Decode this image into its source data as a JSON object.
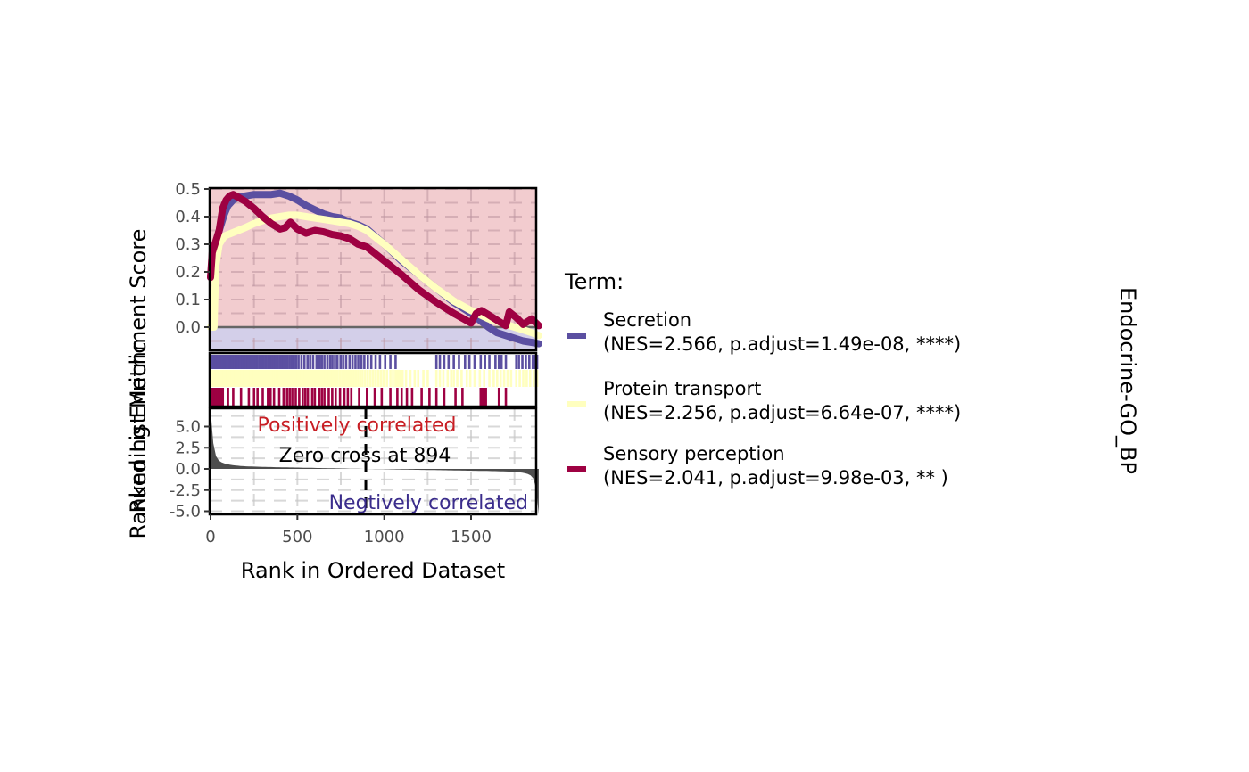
{
  "chart_data": {
    "type": "line",
    "title": "",
    "facet_label": "Endocrine-GO_BP",
    "xlabel": "Rank in Ordered Dataset",
    "xlim": [
      0,
      1890
    ],
    "x_ticks": [
      0,
      500,
      1000,
      1500
    ],
    "x_tick_labels": [
      "0",
      "500",
      "1000",
      "1500"
    ],
    "panels": {
      "running_score": {
        "ylabel": "Running Enrichment Score",
        "ylim": [
          -0.06,
          0.51
        ],
        "y_ticks": [
          0.0,
          0.1,
          0.2,
          0.3,
          0.4,
          0.5
        ],
        "y_tick_labels": [
          "0.0",
          "0.1",
          "0.2",
          "0.3",
          "0.4",
          "0.5"
        ],
        "positive_bg": "#f2cccf",
        "negative_bg": "#d3cfe9",
        "zero_line_color": "#666666"
      },
      "ranked_metric": {
        "ylabel": "Ranked List Metric",
        "ylim": [
          -5.5,
          7.2
        ],
        "y_ticks": [
          5.0,
          2.5,
          0.0,
          -2.5,
          -5.0
        ],
        "y_tick_labels": [
          "5.0",
          "2.5",
          "0.0",
          "-2.5",
          "-5.0"
        ],
        "fill_color": "#4d4d4d",
        "annotations": {
          "positive": "Positively correlated",
          "positive_color": "#c81e24",
          "negative": "Negtively correlated",
          "negative_color": "#3b2d8c",
          "zero_cross": "Zero cross at 894",
          "zero_cross_x": 894
        }
      }
    },
    "legend": {
      "title": "Term:",
      "position": "right"
    },
    "series": [
      {
        "name": "Secretion",
        "stats": "(NES=2.566, p.adjust=1.49e-08, ****)",
        "color": "#5b4fa1",
        "x": [
          0,
          20,
          40,
          60,
          80,
          100,
          130,
          160,
          200,
          250,
          300,
          350,
          400,
          450,
          500,
          550,
          600,
          650,
          700,
          750,
          800,
          850,
          900,
          1000,
          1100,
          1200,
          1300,
          1400,
          1500,
          1600,
          1650,
          1700,
          1750,
          1800,
          1850,
          1890
        ],
        "values": [
          0.18,
          0.28,
          0.33,
          0.37,
          0.41,
          0.44,
          0.46,
          0.47,
          0.475,
          0.48,
          0.48,
          0.48,
          0.485,
          0.475,
          0.46,
          0.44,
          0.425,
          0.41,
          0.4,
          0.395,
          0.38,
          0.37,
          0.355,
          0.3,
          0.24,
          0.19,
          0.14,
          0.09,
          0.05,
          0.0,
          -0.02,
          -0.03,
          -0.04,
          -0.05,
          -0.055,
          -0.06
        ]
      },
      {
        "name": "Protein transport",
        "stats": "(NES=2.256, p.adjust=6.64e-07, ****)",
        "color": "#ffffbf",
        "x": [
          0,
          20,
          30,
          50,
          80,
          120,
          160,
          200,
          250,
          300,
          350,
          400,
          450,
          500,
          550,
          600,
          650,
          700,
          750,
          800,
          850,
          900,
          1000,
          1100,
          1200,
          1300,
          1400,
          1500,
          1600,
          1700,
          1750,
          1800,
          1850,
          1890
        ],
        "values": [
          0.0,
          0.0,
          0.22,
          0.3,
          0.33,
          0.34,
          0.35,
          0.36,
          0.375,
          0.385,
          0.395,
          0.4,
          0.405,
          0.405,
          0.4,
          0.395,
          0.39,
          0.385,
          0.38,
          0.375,
          0.365,
          0.35,
          0.3,
          0.245,
          0.19,
          0.14,
          0.095,
          0.06,
          0.03,
          0.01,
          0.0,
          -0.01,
          -0.02,
          -0.03
        ]
      },
      {
        "name": "Sensory perception",
        "stats": "(NES=2.041, p.adjust=9.98e-03, **  )",
        "color": "#9e0142",
        "x": [
          0,
          10,
          30,
          50,
          70,
          90,
          110,
          130,
          160,
          200,
          250,
          300,
          350,
          400,
          430,
          460,
          500,
          550,
          600,
          650,
          700,
          750,
          800,
          850,
          900,
          1000,
          1100,
          1200,
          1300,
          1400,
          1500,
          1530,
          1560,
          1600,
          1650,
          1700,
          1720,
          1760,
          1800,
          1850,
          1890
        ],
        "values": [
          0.18,
          0.27,
          0.31,
          0.35,
          0.43,
          0.46,
          0.475,
          0.48,
          0.47,
          0.455,
          0.43,
          0.4,
          0.375,
          0.355,
          0.36,
          0.38,
          0.355,
          0.34,
          0.35,
          0.345,
          0.335,
          0.33,
          0.32,
          0.3,
          0.29,
          0.24,
          0.19,
          0.135,
          0.09,
          0.05,
          0.015,
          0.05,
          0.06,
          0.045,
          0.025,
          0.005,
          0.055,
          0.035,
          0.01,
          0.03,
          0.005
        ]
      }
    ],
    "hits": {
      "Secretion": [
        2,
        5,
        9,
        14,
        18,
        22,
        27,
        31,
        36,
        40,
        45,
        48,
        53,
        57,
        62,
        66,
        70,
        75,
        80,
        84,
        88,
        93,
        97,
        102,
        108,
        113,
        118,
        122,
        128,
        133,
        139,
        145,
        151,
        156,
        162,
        168,
        174,
        181,
        187,
        193,
        199,
        206,
        213,
        220,
        228,
        236,
        245,
        253,
        262,
        270,
        283,
        294,
        306,
        318,
        330,
        341,
        352,
        362,
        373,
        388,
        400,
        411,
        418,
        430,
        442,
        455,
        468,
        480,
        492,
        506,
        523,
        540,
        558,
        573,
        590,
        610,
        627,
        640,
        655,
        672,
        688,
        701,
        716,
        730,
        748,
        763,
        780,
        800,
        817,
        834,
        850,
        868,
        885,
        905,
        925,
        950,
        975,
        1005,
        1035,
        1065,
        1300,
        1320,
        1345,
        1370,
        1400,
        1430,
        1465,
        1490,
        1520,
        1555,
        1580,
        1605,
        1640,
        1660,
        1675,
        1700,
        1760,
        1775,
        1795,
        1815,
        1835,
        1855,
        1870,
        1880
      ],
      "Protein transport": [
        1,
        4,
        8,
        12,
        16,
        20,
        24,
        29,
        33,
        38,
        42,
        47,
        52,
        56,
        61,
        65,
        70,
        75,
        80,
        85,
        90,
        95,
        100,
        106,
        112,
        118,
        124,
        130,
        137,
        144,
        151,
        158,
        165,
        172,
        180,
        188,
        196,
        205,
        214,
        223,
        232,
        242,
        252,
        262,
        272,
        282,
        292,
        302,
        312,
        322,
        332,
        342,
        352,
        362,
        372,
        382,
        392,
        402,
        412,
        422,
        432,
        442,
        452,
        462,
        472,
        482,
        492,
        502,
        512,
        522,
        532,
        542,
        552,
        562,
        572,
        582,
        592,
        602,
        612,
        622,
        632,
        642,
        652,
        662,
        672,
        682,
        692,
        702,
        712,
        722,
        732,
        745,
        758,
        771,
        784,
        797,
        810,
        823,
        836,
        849,
        862,
        875,
        890,
        905,
        920,
        935,
        950,
        965,
        980,
        995,
        1015,
        1035,
        1050,
        1065,
        1075,
        1085,
        1095,
        1105,
        1125,
        1150,
        1175,
        1195,
        1225,
        1250,
        1300,
        1320,
        1340,
        1365,
        1385,
        1400,
        1420,
        1445,
        1475,
        1495,
        1520,
        1550,
        1575,
        1605,
        1630,
        1650,
        1670,
        1690,
        1710,
        1730,
        1760,
        1780,
        1800,
        1820,
        1840,
        1860,
        1880
      ],
      "Sensory perception": [
        3,
        8,
        15,
        22,
        30,
        38,
        48,
        58,
        70,
        100,
        130,
        175,
        220,
        250,
        270,
        300,
        330,
        345,
        365,
        395,
        420,
        440,
        455,
        470,
        490,
        510,
        530,
        545,
        560,
        585,
        600,
        625,
        640,
        655,
        680,
        700,
        720,
        745,
        770,
        790,
        810,
        855,
        900,
        945,
        985,
        1035,
        1075,
        1100,
        1130,
        1160,
        1215,
        1260,
        1300,
        1345,
        1410,
        1450,
        1555,
        1565,
        1575,
        1585,
        1660,
        1700
      ]
    }
  }
}
